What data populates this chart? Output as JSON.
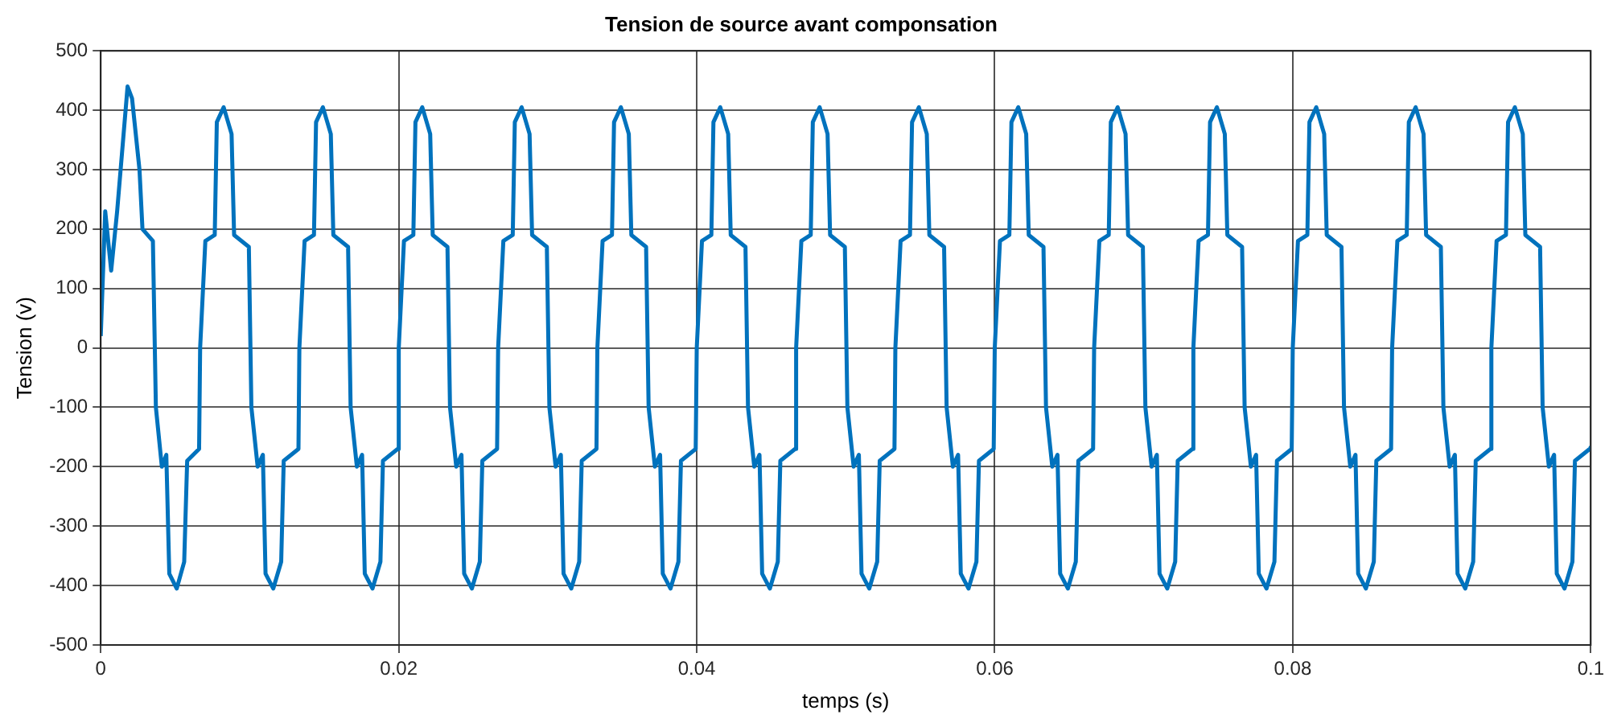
{
  "chart_data": {
    "type": "line",
    "title": "Tension de source avant componsation",
    "xlabel": "temps (s)",
    "ylabel": "Tension (v)",
    "x": [
      0,
      0.0003,
      0.0007,
      0.0011,
      0.0018,
      0.0021,
      0.0026,
      0.0028,
      0.0035,
      0.0037,
      0.0041,
      0.0044,
      0.0046,
      0.0051,
      0.0056,
      0.0058,
      0.0066,
      0.00667,
      0.00702,
      0.00765,
      0.00779,
      0.00825,
      0.00878,
      0.00895,
      0.00994,
      0.01011,
      0.01053,
      0.01088,
      0.01106,
      0.01158,
      0.01211,
      0.01228,
      0.01327,
      0.01333,
      0.01368,
      0.01431,
      0.01445,
      0.01491,
      0.01544,
      0.01561,
      0.0166,
      0.01677,
      0.01719,
      0.01754,
      0.01772,
      0.01824,
      0.01877,
      0.01894,
      0.01993,
      0.02,
      0.02035,
      0.02098,
      0.02112,
      0.02158,
      0.02211,
      0.02228,
      0.02327,
      0.02344,
      0.02386,
      0.02421,
      0.02439,
      0.02491,
      0.02544,
      0.02561,
      0.0266,
      0.02667,
      0.02702,
      0.02765,
      0.02779,
      0.02825,
      0.02878,
      0.02895,
      0.02994,
      0.03011,
      0.03053,
      0.03088,
      0.03106,
      0.03158,
      0.03211,
      0.03228,
      0.03327,
      0.03333,
      0.03368,
      0.03431,
      0.03445,
      0.03491,
      0.03544,
      0.03561,
      0.0366,
      0.03677,
      0.03719,
      0.03754,
      0.03772,
      0.03824,
      0.03877,
      0.03894,
      0.03993,
      0.04,
      0.04035,
      0.04098,
      0.04112,
      0.04158,
      0.04211,
      0.04228,
      0.04327,
      0.04344,
      0.04386,
      0.04421,
      0.04439,
      0.04491,
      0.04544,
      0.04561,
      0.0466,
      0.04667,
      0.04702,
      0.04765,
      0.04779,
      0.04825,
      0.04878,
      0.04895,
      0.04994,
      0.05011,
      0.05053,
      0.05088,
      0.05106,
      0.05158,
      0.05211,
      0.05228,
      0.05327,
      0.05333,
      0.05368,
      0.05431,
      0.05445,
      0.05491,
      0.05544,
      0.05561,
      0.0566,
      0.05677,
      0.05719,
      0.05754,
      0.05772,
      0.05824,
      0.05877,
      0.05894,
      0.05993,
      0.06,
      0.06035,
      0.06098,
      0.06112,
      0.06158,
      0.06211,
      0.06228,
      0.06327,
      0.06344,
      0.06386,
      0.06421,
      0.06439,
      0.06491,
      0.06544,
      0.06561,
      0.0666,
      0.06667,
      0.06702,
      0.06765,
      0.06779,
      0.06825,
      0.06878,
      0.06895,
      0.06994,
      0.07011,
      0.07053,
      0.07088,
      0.07106,
      0.07158,
      0.07211,
      0.07228,
      0.07327,
      0.07333,
      0.07368,
      0.07431,
      0.07445,
      0.07491,
      0.07544,
      0.07561,
      0.0766,
      0.07677,
      0.07719,
      0.07754,
      0.07772,
      0.07824,
      0.07877,
      0.07894,
      0.07993,
      0.08,
      0.08035,
      0.08098,
      0.08112,
      0.08158,
      0.08211,
      0.08228,
      0.08327,
      0.08344,
      0.08386,
      0.08421,
      0.08439,
      0.08491,
      0.08544,
      0.08561,
      0.0866,
      0.08667,
      0.08702,
      0.08765,
      0.08779,
      0.08825,
      0.08878,
      0.08895,
      0.08994,
      0.09011,
      0.09053,
      0.09088,
      0.09106,
      0.09158,
      0.09211,
      0.09228,
      0.09327,
      0.09333,
      0.09368,
      0.09431,
      0.09445,
      0.09491,
      0.09544,
      0.09561,
      0.0966,
      0.09677,
      0.09719,
      0.09754,
      0.09772,
      0.09824,
      0.09877,
      0.09894,
      0.09993,
      0.1
    ],
    "series": [
      {
        "color": "#0072bd",
        "values": [
          20,
          230,
          130,
          230,
          440,
          420,
          300,
          200,
          180,
          -100,
          -200,
          -180,
          -380,
          -405,
          -360,
          -190,
          -170,
          0,
          180,
          190,
          380,
          405,
          360,
          190,
          170,
          -100,
          -200,
          -180,
          -380,
          -405,
          -360,
          -190,
          -170,
          0,
          180,
          190,
          380,
          405,
          360,
          190,
          170,
          -100,
          -200,
          -180,
          -380,
          -405,
          -360,
          -190,
          -170,
          0,
          180,
          190,
          380,
          405,
          360,
          190,
          170,
          -100,
          -200,
          -180,
          -380,
          -405,
          -360,
          -190,
          -170,
          0,
          180,
          190,
          380,
          405,
          360,
          190,
          170,
          -100,
          -200,
          -180,
          -380,
          -405,
          -360,
          -190,
          -170,
          0,
          180,
          190,
          380,
          405,
          360,
          190,
          170,
          -100,
          -200,
          -180,
          -380,
          -405,
          -360,
          -190,
          -170,
          0,
          180,
          190,
          380,
          405,
          360,
          190,
          170,
          -100,
          -200,
          -180,
          -380,
          -405,
          -360,
          -190,
          -170,
          0,
          180,
          190,
          380,
          405,
          360,
          190,
          170,
          -100,
          -200,
          -180,
          -380,
          -405,
          -360,
          -190,
          -170,
          0,
          180,
          190,
          380,
          405,
          360,
          190,
          170,
          -100,
          -200,
          -180,
          -380,
          -405,
          -360,
          -190,
          -170,
          0,
          180,
          190,
          380,
          405,
          360,
          190,
          170,
          -100,
          -200,
          -180,
          -380,
          -405,
          -360,
          -190,
          -170,
          0,
          180,
          190,
          380,
          405,
          360,
          190,
          170,
          -100,
          -200,
          -180,
          -380,
          -405,
          -360,
          -190,
          -170,
          0,
          180,
          190,
          380,
          405,
          360,
          190,
          170,
          -100,
          -200,
          -180,
          -380,
          -405,
          -360,
          -190,
          -170,
          0,
          180,
          190,
          380,
          405,
          360,
          190,
          170,
          -100,
          -200,
          -180,
          -380,
          -405,
          -360,
          -190,
          -170,
          0,
          180,
          190,
          380,
          405,
          360,
          190,
          170,
          -100,
          -200,
          -180,
          -380,
          -405,
          -360,
          -190,
          -170,
          0,
          180,
          190,
          380,
          405,
          360,
          190,
          170,
          -100,
          -200,
          -180,
          -380,
          -405,
          -360,
          -190,
          -170,
          -165
        ]
      }
    ],
    "xlim": [
      0,
      0.1
    ],
    "xticks": [
      0,
      0.02,
      0.04,
      0.06,
      0.08,
      0.1
    ],
    "ylim": [
      -500,
      500
    ],
    "yticks": [
      -500,
      -400,
      -300,
      -200,
      -100,
      0,
      100,
      200,
      300,
      400,
      500
    ],
    "grid": true,
    "line_style": "solid",
    "marker": "none"
  }
}
